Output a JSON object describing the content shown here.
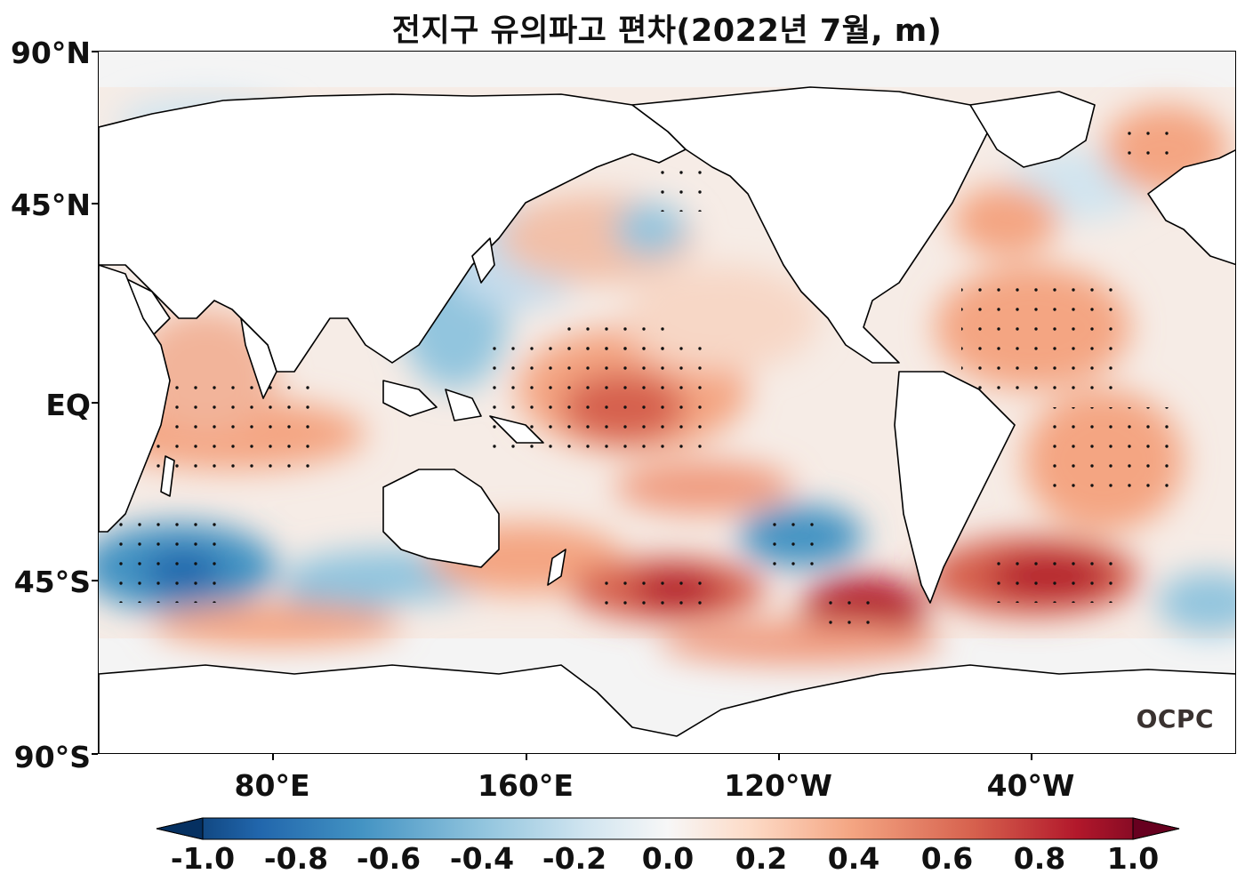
{
  "title": "전지구 유의파고 편차(2022년 7월, m)",
  "map": {
    "lat_labels": [
      "90°N",
      "45°N",
      "EQ",
      "45°S",
      "90°S"
    ],
    "lon_labels": [
      "80°E",
      "160°E",
      "120°W",
      "40°W"
    ],
    "logo": "OCPC",
    "colormap": "RdBu_r",
    "land_color": "#ffffff",
    "stippling": "dots mark significant anomalies"
  },
  "colorbar": {
    "ticks": [
      "-1.0",
      "-0.8",
      "-0.6",
      "-0.4",
      "-0.2",
      "0.0",
      "0.2",
      "0.4",
      "0.6",
      "0.8",
      "1.0"
    ],
    "range": [
      -1.0,
      1.0
    ],
    "colors": [
      "#053061",
      "#2166ac",
      "#4393c3",
      "#92c5de",
      "#d1e5f0",
      "#f7f7f7",
      "#fddbc7",
      "#f4a582",
      "#d6604d",
      "#b2182b",
      "#67001f"
    ]
  }
}
